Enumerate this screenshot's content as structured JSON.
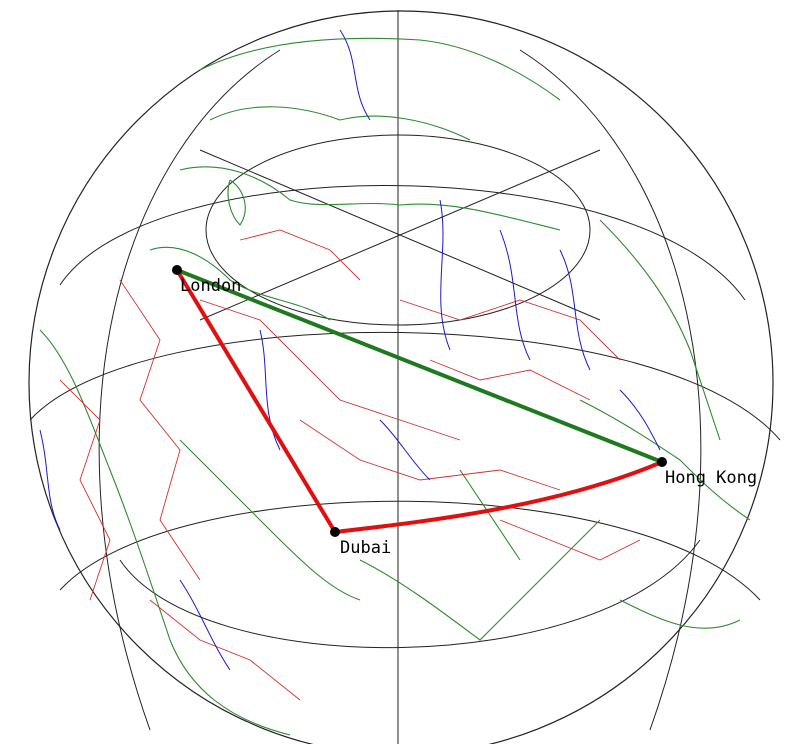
{
  "map": {
    "projection": "orthographic",
    "colors": {
      "graticule": "#222222",
      "coastline": "#2e8b2e",
      "borders": "#d32f2f",
      "rivers": "#1a1acc",
      "direct_route": "#1f7a1f",
      "via_route": "#e01010"
    },
    "cities": [
      {
        "id": "london",
        "label": "London"
      },
      {
        "id": "dubai",
        "label": "Dubai"
      },
      {
        "id": "hongkong",
        "label": "Hong Kong"
      }
    ],
    "routes": [
      {
        "id": "direct",
        "from": "London",
        "to": "Hong Kong",
        "color": "#1f7a1f"
      },
      {
        "id": "via",
        "from": "London",
        "via": "Dubai",
        "to": "Hong Kong",
        "color": "#e01010"
      }
    ]
  }
}
